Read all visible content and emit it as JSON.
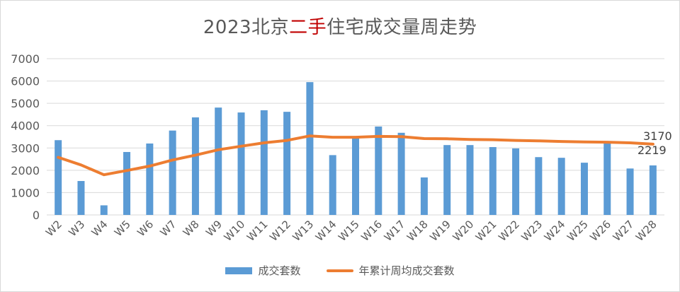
{
  "chart_data": {
    "type": "bar",
    "title_parts": [
      "2023北京",
      "二手",
      "住宅成交量周走势"
    ],
    "categories": [
      "W2",
      "W3",
      "W4",
      "W5",
      "W6",
      "W7",
      "W8",
      "W9",
      "W10",
      "W11",
      "W12",
      "W13",
      "W14",
      "W15",
      "W16",
      "W17",
      "W18",
      "W19",
      "W20",
      "W21",
      "W22",
      "W23",
      "W24",
      "W25",
      "W26",
      "W27",
      "W28"
    ],
    "series": [
      {
        "name": "成交套数",
        "kind": "bar",
        "color": "#5b9bd5",
        "values": [
          3350,
          1520,
          430,
          2820,
          3200,
          3780,
          4370,
          4810,
          4590,
          4690,
          4620,
          5950,
          2680,
          3490,
          3960,
          3680,
          1680,
          3130,
          3130,
          3040,
          2980,
          2590,
          2560,
          2340,
          3230,
          2080,
          2219
        ]
      },
      {
        "name": "年累计周均成交套数",
        "kind": "line",
        "color": "#ed7d31",
        "values": [
          2580,
          2240,
          1800,
          1990,
          2190,
          2460,
          2680,
          2920,
          3080,
          3230,
          3340,
          3540,
          3480,
          3480,
          3520,
          3510,
          3420,
          3410,
          3380,
          3370,
          3340,
          3320,
          3290,
          3270,
          3260,
          3230,
          3170
        ]
      }
    ],
    "data_labels": {
      "line_last": "3170",
      "bar_last": "2219"
    },
    "ylim": [
      0,
      7000
    ],
    "yticks": [
      "0",
      "1000",
      "2000",
      "3000",
      "4000",
      "5000",
      "6000",
      "7000"
    ],
    "grid": true,
    "legend": "bottom",
    "colors": {
      "title_accent": "#c00000",
      "text": "#595959",
      "grid": "#d9d9d9"
    }
  }
}
